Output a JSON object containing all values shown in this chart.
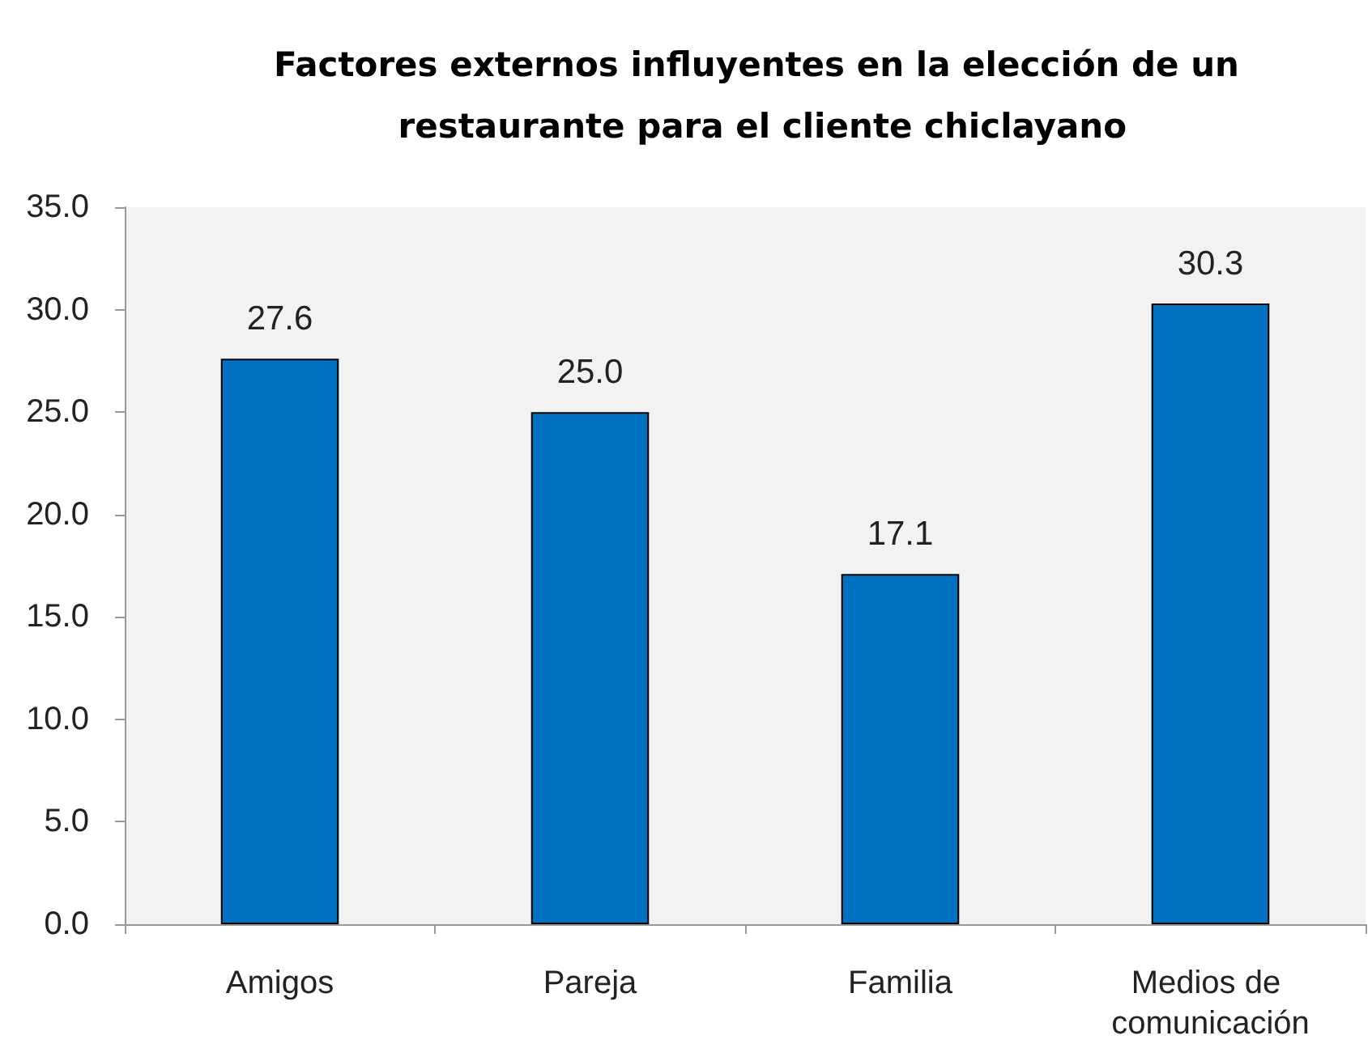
{
  "chart_data": {
    "type": "bar",
    "title": "Factores externos influyentes en la elección de un restaurante para el cliente chiclayano",
    "categories": [
      "Amigos",
      "Pareja",
      "Familia",
      "Medios de comunicación"
    ],
    "values": [
      27.6,
      25.0,
      17.1,
      30.3
    ],
    "color": "#0070c0",
    "value_labels": [
      "27.6",
      "25.0",
      "17.1",
      "30.3"
    ],
    "ylim": [
      0,
      35
    ],
    "yticks": [
      {
        "value": 0,
        "label": "0.0"
      },
      {
        "value": 5,
        "label": "5.0"
      },
      {
        "value": 10,
        "label": "10.0"
      },
      {
        "value": 15,
        "label": "15.0"
      },
      {
        "value": 20,
        "label": "20.0"
      },
      {
        "value": 25,
        "label": "25.0"
      },
      {
        "value": 30,
        "label": "30.0"
      },
      {
        "value": 35,
        "label": "35.0"
      }
    ],
    "grid": false
  }
}
